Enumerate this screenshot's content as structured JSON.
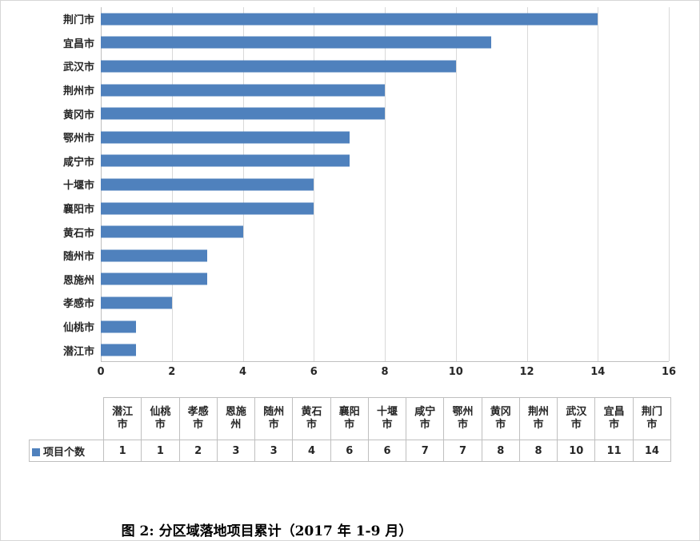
{
  "colors": {
    "bar": "#4f81bd",
    "grid": "#d9d9d9",
    "axis_line": "#bfbfbf",
    "table_border": "#bfbfbf",
    "text": "#262626"
  },
  "chart_data": {
    "type": "bar",
    "orientation": "horizontal",
    "title": "",
    "xlabel": "",
    "ylabel": "",
    "categories": [
      "荆门市",
      "宜昌市",
      "武汉市",
      "荆州市",
      "黄冈市",
      "鄂州市",
      "咸宁市",
      "十堰市",
      "襄阳市",
      "黄石市",
      "随州市",
      "恩施州",
      "孝感市",
      "仙桃市",
      "潜江市"
    ],
    "values": [
      14,
      11,
      10,
      8,
      8,
      7,
      7,
      6,
      6,
      4,
      3,
      3,
      2,
      1,
      1
    ],
    "series_name": "项目个数",
    "xlim": [
      0,
      16
    ],
    "x_ticks": [
      0,
      2,
      4,
      6,
      8,
      10,
      12,
      14,
      16
    ],
    "grid": true,
    "legend_position": "data-table-left"
  },
  "table": {
    "row_label": "项目个数",
    "columns": [
      "潜江市",
      "仙桃市",
      "孝感市",
      "恩施州",
      "随州市",
      "黄石市",
      "襄阳市",
      "十堰市",
      "咸宁市",
      "鄂州市",
      "黄冈市",
      "荆州市",
      "武汉市",
      "宜昌市",
      "荆门市"
    ],
    "values": [
      1,
      1,
      2,
      3,
      3,
      4,
      6,
      6,
      7,
      7,
      8,
      8,
      10,
      11,
      14
    ]
  },
  "caption": "图 2: 分区域落地项目累计（2017 年 1-9 月）"
}
